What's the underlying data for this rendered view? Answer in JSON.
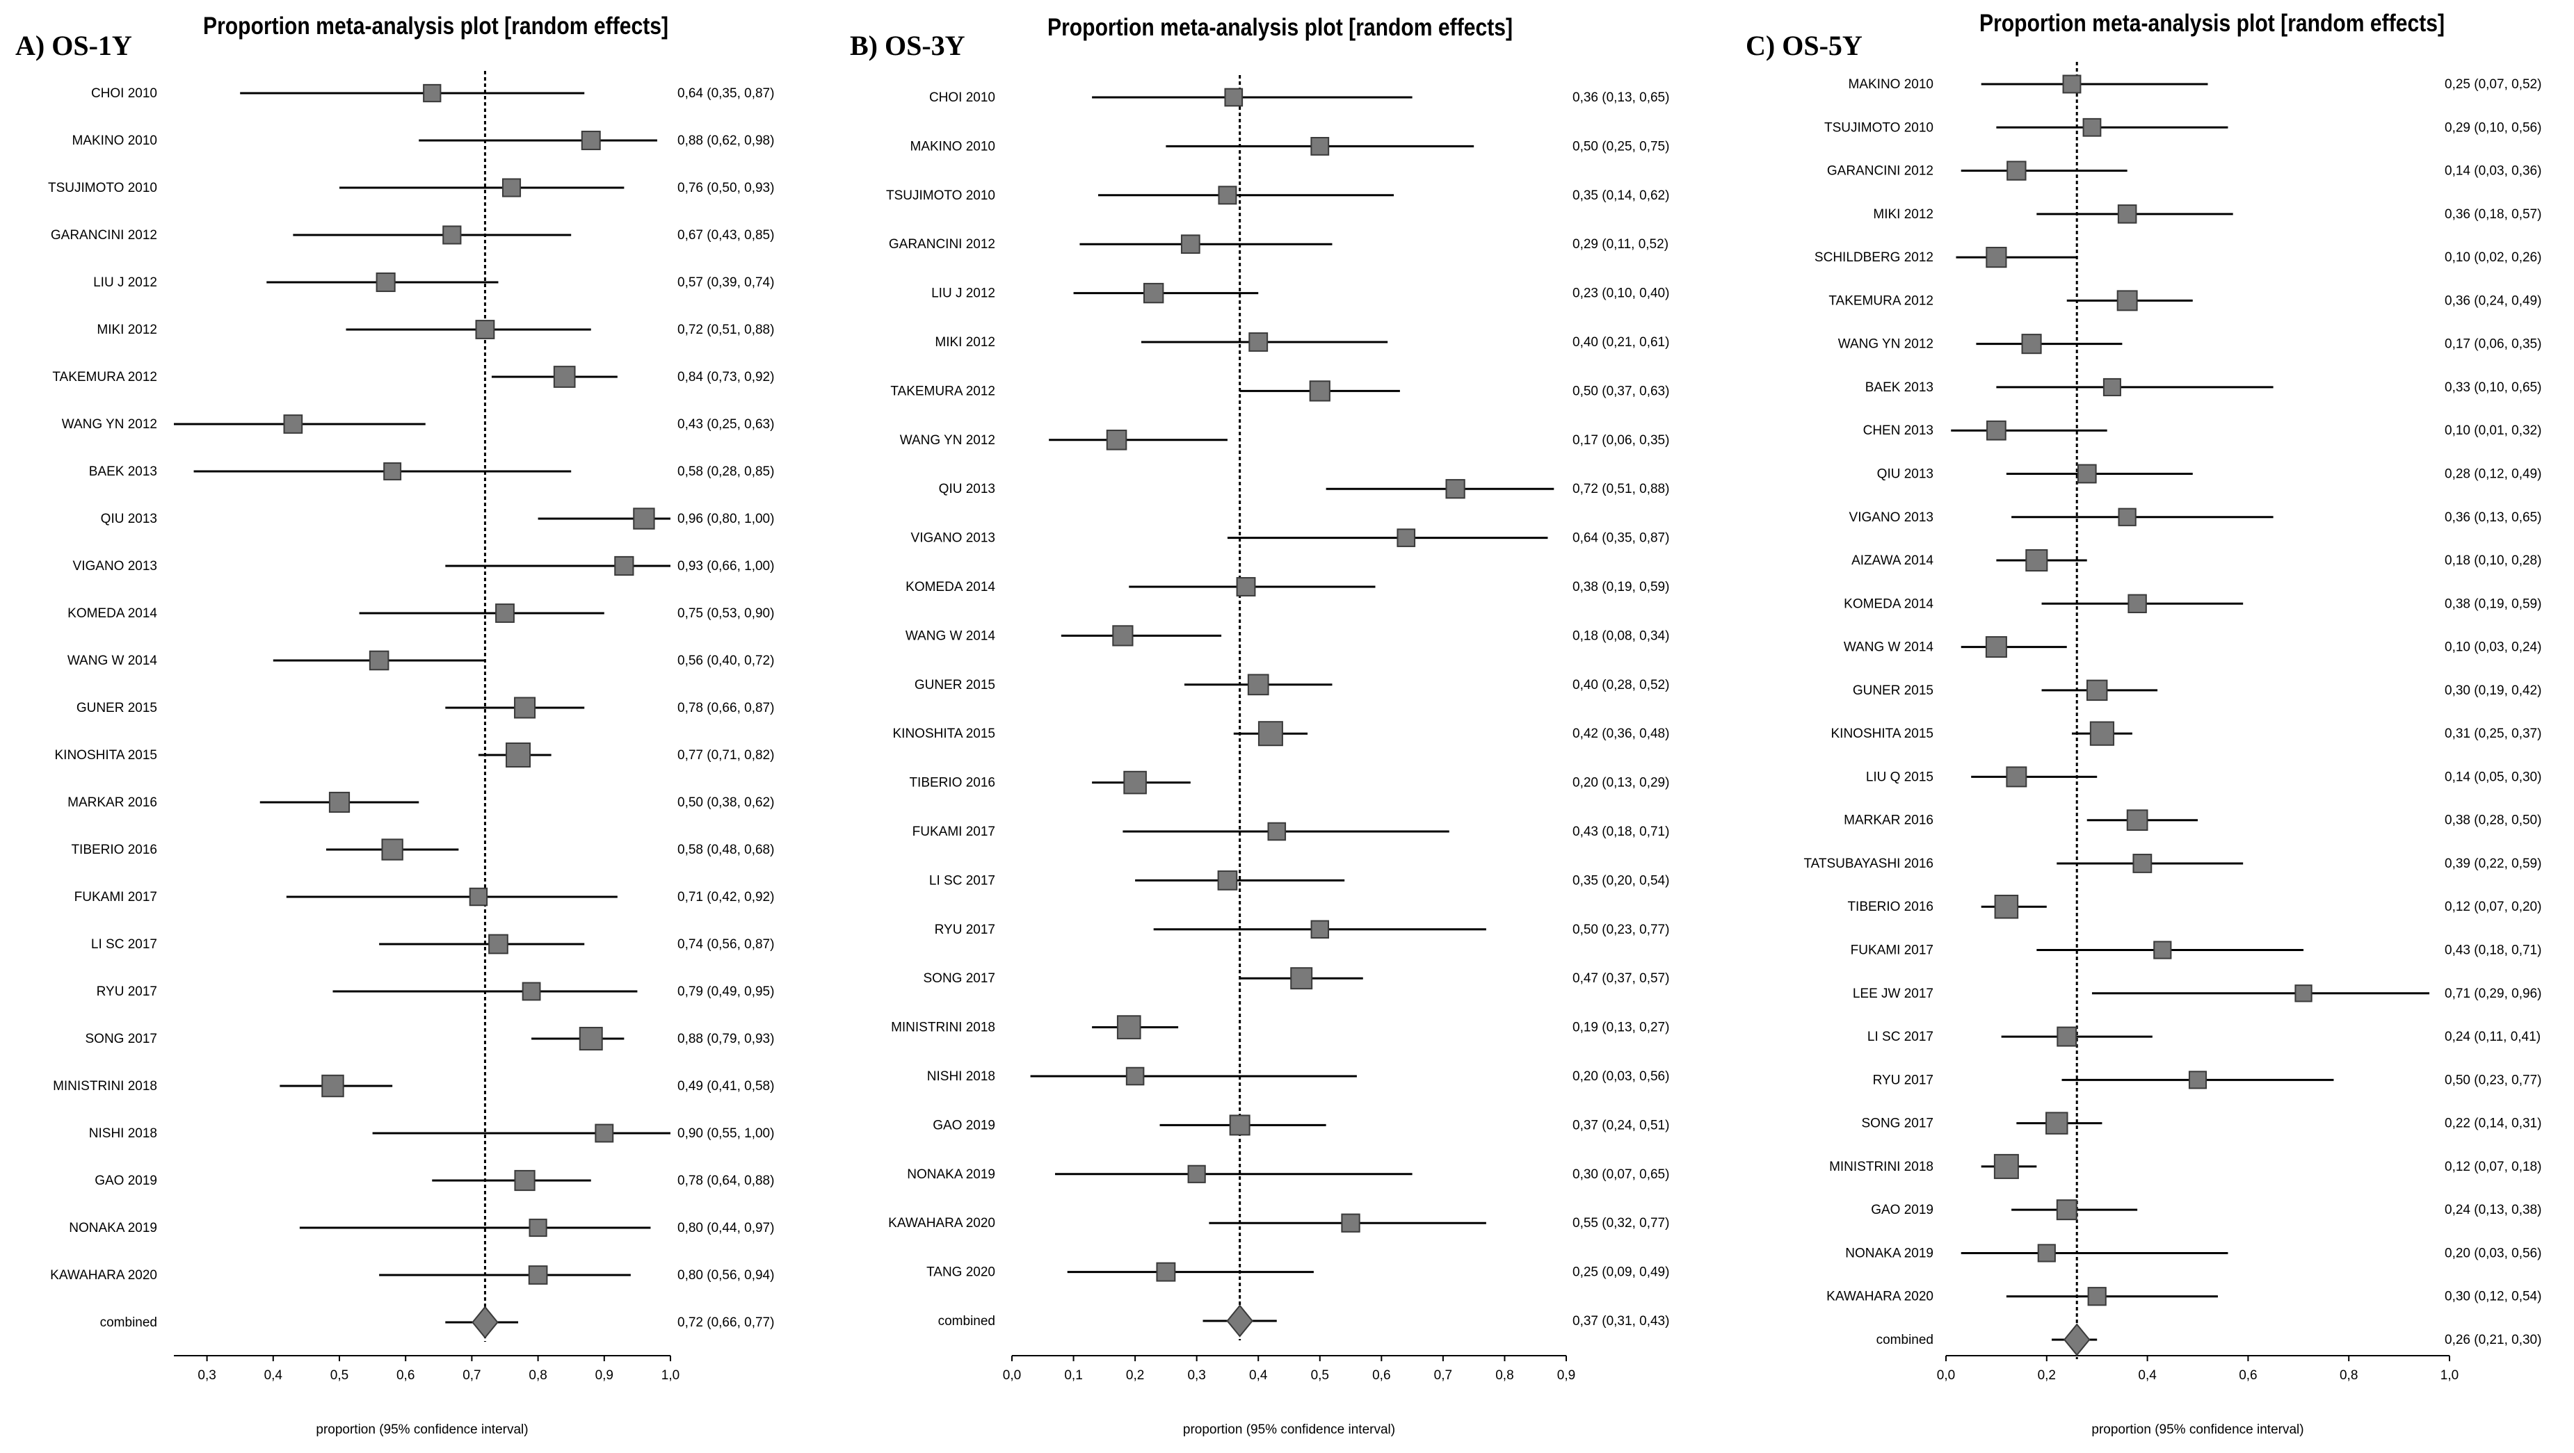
{
  "chart_data": [
    {
      "type": "forest",
      "panel_label": "A) OS-1Y",
      "title": "Proportion meta-analysis plot [random effects]",
      "xlabel": "proportion (95% confidence interval)",
      "xlim": [
        0.25,
        1.0
      ],
      "xticks": [
        0.3,
        0.4,
        0.5,
        0.6,
        0.7,
        0.8,
        0.9,
        1.0
      ],
      "xtick_labels": [
        "0,3",
        "0,4",
        "0,5",
        "0,6",
        "0,7",
        "0,8",
        "0,9",
        "1,0"
      ],
      "pooled_line": 0.72,
      "studies": [
        {
          "name": "CHOI 2010",
          "est": 0.64,
          "lo": 0.35,
          "hi": 0.87,
          "ci_text": "0,64 (0,35, 0,87)"
        },
        {
          "name": "MAKINO 2010",
          "est": 0.88,
          "lo": 0.62,
          "hi": 0.98,
          "ci_text": "0,88 (0,62, 0,98)"
        },
        {
          "name": "TSUJIMOTO 2010",
          "est": 0.76,
          "lo": 0.5,
          "hi": 0.93,
          "ci_text": "0,76 (0,50, 0,93)"
        },
        {
          "name": "GARANCINI 2012",
          "est": 0.67,
          "lo": 0.43,
          "hi": 0.85,
          "ci_text": "0,67 (0,43, 0,85)"
        },
        {
          "name": "LIU J 2012",
          "est": 0.57,
          "lo": 0.39,
          "hi": 0.74,
          "ci_text": "0,57 (0,39, 0,74)"
        },
        {
          "name": "MIKI 2012",
          "est": 0.72,
          "lo": 0.51,
          "hi": 0.88,
          "ci_text": "0,72 (0,51, 0,88)"
        },
        {
          "name": "TAKEMURA 2012",
          "est": 0.84,
          "lo": 0.73,
          "hi": 0.92,
          "ci_text": "0,84 (0,73, 0,92)"
        },
        {
          "name": "WANG YN 2012",
          "est": 0.43,
          "lo": 0.25,
          "hi": 0.63,
          "ci_text": "0,43 (0,25, 0,63)"
        },
        {
          "name": "BAEK 2013",
          "est": 0.58,
          "lo": 0.28,
          "hi": 0.85,
          "ci_text": "0,58 (0,28, 0,85)"
        },
        {
          "name": "QIU 2013",
          "est": 0.96,
          "lo": 0.8,
          "hi": 1.0,
          "ci_text": "0,96 (0,80, 1,00)"
        },
        {
          "name": "VIGANO 2013",
          "est": 0.93,
          "lo": 0.66,
          "hi": 1.0,
          "ci_text": "0,93 (0,66, 1,00)"
        },
        {
          "name": "KOMEDA 2014",
          "est": 0.75,
          "lo": 0.53,
          "hi": 0.9,
          "ci_text": "0,75 (0,53, 0,90)"
        },
        {
          "name": "WANG W 2014",
          "est": 0.56,
          "lo": 0.4,
          "hi": 0.72,
          "ci_text": "0,56 (0,40, 0,72)"
        },
        {
          "name": "GUNER 2015",
          "est": 0.78,
          "lo": 0.66,
          "hi": 0.87,
          "ci_text": "0,78 (0,66, 0,87)"
        },
        {
          "name": "KINOSHITA 2015",
          "est": 0.77,
          "lo": 0.71,
          "hi": 0.82,
          "ci_text": "0,77 (0,71, 0,82)"
        },
        {
          "name": "MARKAR 2016",
          "est": 0.5,
          "lo": 0.38,
          "hi": 0.62,
          "ci_text": "0,50 (0,38, 0,62)"
        },
        {
          "name": "TIBERIO 2016",
          "est": 0.58,
          "lo": 0.48,
          "hi": 0.68,
          "ci_text": "0,58 (0,48, 0,68)"
        },
        {
          "name": "FUKAMI 2017",
          "est": 0.71,
          "lo": 0.42,
          "hi": 0.92,
          "ci_text": "0,71 (0,42, 0,92)"
        },
        {
          "name": "LI SC 2017",
          "est": 0.74,
          "lo": 0.56,
          "hi": 0.87,
          "ci_text": "0,74 (0,56, 0,87)"
        },
        {
          "name": "RYU 2017",
          "est": 0.79,
          "lo": 0.49,
          "hi": 0.95,
          "ci_text": "0,79 (0,49, 0,95)"
        },
        {
          "name": "SONG 2017",
          "est": 0.88,
          "lo": 0.79,
          "hi": 0.93,
          "ci_text": "0,88 (0,79, 0,93)"
        },
        {
          "name": "MINISTRINI 2018",
          "est": 0.49,
          "lo": 0.41,
          "hi": 0.58,
          "ci_text": "0,49 (0,41, 0,58)"
        },
        {
          "name": "NISHI 2018",
          "est": 0.9,
          "lo": 0.55,
          "hi": 1.0,
          "ci_text": "0,90 (0,55, 1,00)"
        },
        {
          "name": "GAO 2019",
          "est": 0.78,
          "lo": 0.64,
          "hi": 0.88,
          "ci_text": "0,78 (0,64, 0,88)"
        },
        {
          "name": "NONAKA 2019",
          "est": 0.8,
          "lo": 0.44,
          "hi": 0.97,
          "ci_text": "0,80 (0,44, 0,97)"
        },
        {
          "name": "KAWAHARA 2020",
          "est": 0.8,
          "lo": 0.56,
          "hi": 0.94,
          "ci_text": "0,80 (0,56, 0,94)"
        }
      ],
      "combined": {
        "name": "combined",
        "est": 0.72,
        "lo": 0.66,
        "hi": 0.77,
        "ci_text": "0,72 (0,66, 0,77)"
      }
    },
    {
      "type": "forest",
      "panel_label": "B) OS-3Y",
      "title": "Proportion meta-analysis plot [random effects]",
      "xlabel": "proportion (95% confidence interval)",
      "xlim": [
        0.0,
        0.9
      ],
      "xticks": [
        0.0,
        0.1,
        0.2,
        0.3,
        0.4,
        0.5,
        0.6,
        0.7,
        0.8,
        0.9
      ],
      "xtick_labels": [
        "0,0",
        "0,1",
        "0,2",
        "0,3",
        "0,4",
        "0,5",
        "0,6",
        "0,7",
        "0,8",
        "0,9"
      ],
      "pooled_line": 0.37,
      "studies": [
        {
          "name": "CHOI 2010",
          "est": 0.36,
          "lo": 0.13,
          "hi": 0.65,
          "ci_text": "0,36 (0,13, 0,65)"
        },
        {
          "name": "MAKINO 2010",
          "est": 0.5,
          "lo": 0.25,
          "hi": 0.75,
          "ci_text": "0,50 (0,25, 0,75)"
        },
        {
          "name": "TSUJIMOTO 2010",
          "est": 0.35,
          "lo": 0.14,
          "hi": 0.62,
          "ci_text": "0,35 (0,14, 0,62)"
        },
        {
          "name": "GARANCINI 2012",
          "est": 0.29,
          "lo": 0.11,
          "hi": 0.52,
          "ci_text": "0,29 (0,11, 0,52)"
        },
        {
          "name": "LIU J 2012",
          "est": 0.23,
          "lo": 0.1,
          "hi": 0.4,
          "ci_text": "0,23 (0,10, 0,40)"
        },
        {
          "name": "MIKI 2012",
          "est": 0.4,
          "lo": 0.21,
          "hi": 0.61,
          "ci_text": "0,40 (0,21, 0,61)"
        },
        {
          "name": "TAKEMURA 2012",
          "est": 0.5,
          "lo": 0.37,
          "hi": 0.63,
          "ci_text": "0,50 (0,37, 0,63)"
        },
        {
          "name": "WANG YN 2012",
          "est": 0.17,
          "lo": 0.06,
          "hi": 0.35,
          "ci_text": "0,17 (0,06, 0,35)"
        },
        {
          "name": "QIU 2013",
          "est": 0.72,
          "lo": 0.51,
          "hi": 0.88,
          "ci_text": "0,72 (0,51, 0,88)"
        },
        {
          "name": "VIGANO 2013",
          "est": 0.64,
          "lo": 0.35,
          "hi": 0.87,
          "ci_text": "0,64 (0,35, 0,87)"
        },
        {
          "name": "KOMEDA 2014",
          "est": 0.38,
          "lo": 0.19,
          "hi": 0.59,
          "ci_text": "0,38 (0,19, 0,59)"
        },
        {
          "name": "WANG W 2014",
          "est": 0.18,
          "lo": 0.08,
          "hi": 0.34,
          "ci_text": "0,18 (0,08, 0,34)"
        },
        {
          "name": "GUNER 2015",
          "est": 0.4,
          "lo": 0.28,
          "hi": 0.52,
          "ci_text": "0,40 (0,28, 0,52)"
        },
        {
          "name": "KINOSHITA 2015",
          "est": 0.42,
          "lo": 0.36,
          "hi": 0.48,
          "ci_text": "0,42 (0,36, 0,48)"
        },
        {
          "name": "TIBERIO 2016",
          "est": 0.2,
          "lo": 0.13,
          "hi": 0.29,
          "ci_text": "0,20 (0,13, 0,29)"
        },
        {
          "name": "FUKAMI 2017",
          "est": 0.43,
          "lo": 0.18,
          "hi": 0.71,
          "ci_text": "0,43 (0,18, 0,71)"
        },
        {
          "name": "LI SC 2017",
          "est": 0.35,
          "lo": 0.2,
          "hi": 0.54,
          "ci_text": "0,35 (0,20, 0,54)"
        },
        {
          "name": "RYU 2017",
          "est": 0.5,
          "lo": 0.23,
          "hi": 0.77,
          "ci_text": "0,50 (0,23, 0,77)"
        },
        {
          "name": "SONG 2017",
          "est": 0.47,
          "lo": 0.37,
          "hi": 0.57,
          "ci_text": "0,47 (0,37, 0,57)"
        },
        {
          "name": "MINISTRINI 2018",
          "est": 0.19,
          "lo": 0.13,
          "hi": 0.27,
          "ci_text": "0,19 (0,13, 0,27)"
        },
        {
          "name": "NISHI 2018",
          "est": 0.2,
          "lo": 0.03,
          "hi": 0.56,
          "ci_text": "0,20 (0,03, 0,56)"
        },
        {
          "name": "GAO 2019",
          "est": 0.37,
          "lo": 0.24,
          "hi": 0.51,
          "ci_text": "0,37 (0,24, 0,51)"
        },
        {
          "name": "NONAKA 2019",
          "est": 0.3,
          "lo": 0.07,
          "hi": 0.65,
          "ci_text": "0,30 (0,07, 0,65)"
        },
        {
          "name": "KAWAHARA 2020",
          "est": 0.55,
          "lo": 0.32,
          "hi": 0.77,
          "ci_text": "0,55 (0,32, 0,77)"
        },
        {
          "name": "TANG 2020",
          "est": 0.25,
          "lo": 0.09,
          "hi": 0.49,
          "ci_text": "0,25 (0,09, 0,49)"
        }
      ],
      "combined": {
        "name": "combined",
        "est": 0.37,
        "lo": 0.31,
        "hi": 0.43,
        "ci_text": "0,37 (0,31, 0,43)"
      }
    },
    {
      "type": "forest",
      "panel_label": "C) OS-5Y",
      "title": "Proportion meta-analysis plot [random effects]",
      "xlabel": "proportion (95% confidence interval)",
      "xlim": [
        0.0,
        1.0
      ],
      "xticks": [
        0.0,
        0.2,
        0.4,
        0.6,
        0.8,
        1.0
      ],
      "xtick_labels": [
        "0,0",
        "0,2",
        "0,4",
        "0,6",
        "0,8",
        "1,0"
      ],
      "pooled_line": 0.26,
      "studies": [
        {
          "name": "MAKINO 2010",
          "est": 0.25,
          "lo": 0.07,
          "hi": 0.52,
          "ci_text": "0,25 (0,07, 0,52)"
        },
        {
          "name": "TSUJIMOTO 2010",
          "est": 0.29,
          "lo": 0.1,
          "hi": 0.56,
          "ci_text": "0,29 (0,10, 0,56)"
        },
        {
          "name": "GARANCINI 2012",
          "est": 0.14,
          "lo": 0.03,
          "hi": 0.36,
          "ci_text": "0,14 (0,03, 0,36)"
        },
        {
          "name": "MIKI 2012",
          "est": 0.36,
          "lo": 0.18,
          "hi": 0.57,
          "ci_text": "0,36 (0,18, 0,57)"
        },
        {
          "name": "SCHILDBERG 2012",
          "est": 0.1,
          "lo": 0.02,
          "hi": 0.26,
          "ci_text": "0,10 (0,02, 0,26)"
        },
        {
          "name": "TAKEMURA 2012",
          "est": 0.36,
          "lo": 0.24,
          "hi": 0.49,
          "ci_text": "0,36 (0,24, 0,49)"
        },
        {
          "name": "WANG YN 2012",
          "est": 0.17,
          "lo": 0.06,
          "hi": 0.35,
          "ci_text": "0,17 (0,06, 0,35)"
        },
        {
          "name": "BAEK 2013",
          "est": 0.33,
          "lo": 0.1,
          "hi": 0.65,
          "ci_text": "0,33 (0,10, 0,65)"
        },
        {
          "name": "CHEN 2013",
          "est": 0.1,
          "lo": 0.01,
          "hi": 0.32,
          "ci_text": "0,10 (0,01, 0,32)"
        },
        {
          "name": "QIU 2013",
          "est": 0.28,
          "lo": 0.12,
          "hi": 0.49,
          "ci_text": "0,28 (0,12, 0,49)"
        },
        {
          "name": "VIGANO 2013",
          "est": 0.36,
          "lo": 0.13,
          "hi": 0.65,
          "ci_text": "0,36 (0,13, 0,65)"
        },
        {
          "name": "AIZAWA 2014",
          "est": 0.18,
          "lo": 0.1,
          "hi": 0.28,
          "ci_text": "0,18 (0,10, 0,28)"
        },
        {
          "name": "KOMEDA 2014",
          "est": 0.38,
          "lo": 0.19,
          "hi": 0.59,
          "ci_text": "0,38 (0,19, 0,59)"
        },
        {
          "name": "WANG W 2014",
          "est": 0.1,
          "lo": 0.03,
          "hi": 0.24,
          "ci_text": "0,10 (0,03, 0,24)"
        },
        {
          "name": "GUNER 2015",
          "est": 0.3,
          "lo": 0.19,
          "hi": 0.42,
          "ci_text": "0,30 (0,19, 0,42)"
        },
        {
          "name": "KINOSHITA 2015",
          "est": 0.31,
          "lo": 0.25,
          "hi": 0.37,
          "ci_text": "0,31 (0,25, 0,37)"
        },
        {
          "name": "LIU Q 2015",
          "est": 0.14,
          "lo": 0.05,
          "hi": 0.3,
          "ci_text": "0,14 (0,05, 0,30)"
        },
        {
          "name": "MARKAR 2016",
          "est": 0.38,
          "lo": 0.28,
          "hi": 0.5,
          "ci_text": "0,38 (0,28, 0,50)"
        },
        {
          "name": "TATSUBAYASHI 2016",
          "est": 0.39,
          "lo": 0.22,
          "hi": 0.59,
          "ci_text": "0,39 (0,22, 0,59)"
        },
        {
          "name": "TIBERIO 2016",
          "est": 0.12,
          "lo": 0.07,
          "hi": 0.2,
          "ci_text": "0,12 (0,07, 0,20)"
        },
        {
          "name": "FUKAMI 2017",
          "est": 0.43,
          "lo": 0.18,
          "hi": 0.71,
          "ci_text": "0,43 (0,18, 0,71)"
        },
        {
          "name": "LEE JW 2017",
          "est": 0.71,
          "lo": 0.29,
          "hi": 0.96,
          "ci_text": "0,71 (0,29, 0,96)"
        },
        {
          "name": "LI SC 2017",
          "est": 0.24,
          "lo": 0.11,
          "hi": 0.41,
          "ci_text": "0,24 (0,11, 0,41)"
        },
        {
          "name": "RYU 2017",
          "est": 0.5,
          "lo": 0.23,
          "hi": 0.77,
          "ci_text": "0,50 (0,23, 0,77)"
        },
        {
          "name": "SONG 2017",
          "est": 0.22,
          "lo": 0.14,
          "hi": 0.31,
          "ci_text": "0,22 (0,14, 0,31)"
        },
        {
          "name": "MINISTRINI 2018",
          "est": 0.12,
          "lo": 0.07,
          "hi": 0.18,
          "ci_text": "0,12 (0,07, 0,18)"
        },
        {
          "name": "GAO 2019",
          "est": 0.24,
          "lo": 0.13,
          "hi": 0.38,
          "ci_text": "0,24 (0,13, 0,38)"
        },
        {
          "name": "NONAKA 2019",
          "est": 0.2,
          "lo": 0.03,
          "hi": 0.56,
          "ci_text": "0,20 (0,03, 0,56)"
        },
        {
          "name": "KAWAHARA 2020",
          "est": 0.3,
          "lo": 0.12,
          "hi": 0.54,
          "ci_text": "0,30 (0,12, 0,54)"
        }
      ],
      "combined": {
        "name": "combined",
        "est": 0.26,
        "lo": 0.21,
        "hi": 0.3,
        "ci_text": "0,26 (0,21, 0,30)"
      }
    }
  ],
  "colors": {
    "marker_fill": "#7a7a7a",
    "marker_stroke": "#3a3a3a",
    "line": "#000000",
    "background": "#ffffff"
  }
}
